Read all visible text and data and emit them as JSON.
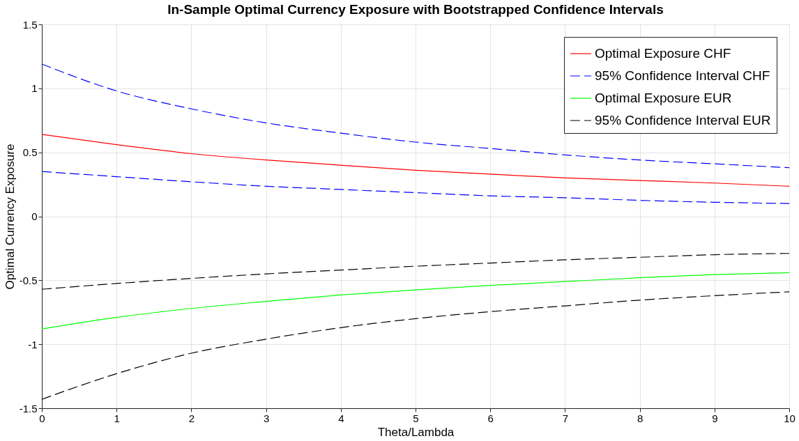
{
  "chart_data": {
    "type": "line",
    "title": "In-Sample Optimal Currency Exposure with Bootstrapped Confidence Intervals",
    "xlabel": "Theta/Lambda",
    "ylabel": "Optimal Currency Exposure",
    "x": [
      0,
      1,
      2,
      3,
      4,
      5,
      6,
      7,
      8,
      9,
      10
    ],
    "series": [
      {
        "name": "Optimal Exposure CHF",
        "color": "#ff0000",
        "line_style": "solid",
        "values": [
          0.64,
          0.56,
          0.49,
          0.44,
          0.4,
          0.36,
          0.33,
          0.3,
          0.28,
          0.26,
          0.235
        ]
      },
      {
        "name": "95% Confidence Interval CHF",
        "color": "#0000ff",
        "line_style": "dashed",
        "values": [
          1.19,
          0.98,
          0.84,
          0.73,
          0.65,
          0.58,
          0.53,
          0.48,
          0.44,
          0.41,
          0.38
        ]
      },
      {
        "color": "#0000ff",
        "line_style": "dashed",
        "values": [
          0.35,
          0.31,
          0.27,
          0.235,
          0.21,
          0.185,
          0.16,
          0.145,
          0.125,
          0.11,
          0.1
        ]
      },
      {
        "name": "Optimal Exposure EUR",
        "color": "#00ff00",
        "line_style": "solid",
        "values": [
          -0.88,
          -0.79,
          -0.72,
          -0.665,
          -0.615,
          -0.575,
          -0.54,
          -0.51,
          -0.48,
          -0.455,
          -0.44
        ]
      },
      {
        "name": "95% Confidence Interval EUR",
        "color": "#000000",
        "line_style": "dashed",
        "values": [
          -0.57,
          -0.525,
          -0.485,
          -0.45,
          -0.42,
          -0.39,
          -0.365,
          -0.34,
          -0.32,
          -0.3,
          -0.29
        ]
      },
      {
        "color": "#000000",
        "line_style": "dashed",
        "values": [
          -1.43,
          -1.23,
          -1.07,
          -0.96,
          -0.87,
          -0.8,
          -0.745,
          -0.7,
          -0.655,
          -0.62,
          -0.59
        ]
      }
    ],
    "xlim": [
      0,
      10
    ],
    "xticks": [
      0,
      1,
      2,
      3,
      4,
      5,
      6,
      7,
      8,
      9,
      10
    ],
    "ylim": [
      -1.5,
      1.5
    ],
    "yticks": [
      -1.5,
      -1,
      -0.5,
      0,
      0.5,
      1,
      1.5
    ],
    "grid": true,
    "legend": "top right",
    "marker": "none"
  }
}
